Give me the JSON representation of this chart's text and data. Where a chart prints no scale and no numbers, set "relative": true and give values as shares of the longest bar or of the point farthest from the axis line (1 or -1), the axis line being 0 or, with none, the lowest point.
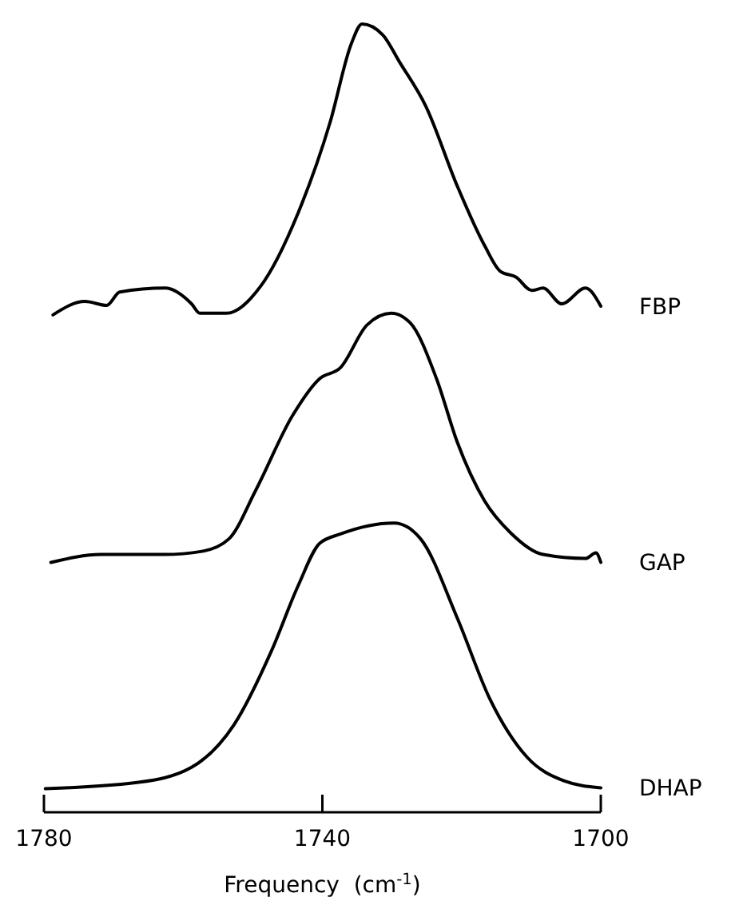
{
  "chart_data": {
    "type": "line",
    "relative": true,
    "xlabel": "Frequency  (cm$^{-1}$)",
    "xlim": [
      1780,
      1700
    ],
    "xticks": [
      1780,
      1740,
      1700
    ],
    "grid": false,
    "marker": "none",
    "line_style": "solid",
    "series": [
      {
        "name": "FBP",
        "color": "#000000",
        "x": [
          1778.7,
          1774.1,
          1771.0,
          1769.1,
          1762.6,
          1758.8,
          1757.6,
          1753.8,
          1748.9,
          1743.5,
          1738.9,
          1735.8,
          1734.3,
          1731.3,
          1729.0,
          1725.1,
          1720.6,
          1716.7,
          1714.4,
          1712.2,
          1709.9,
          1708.3,
          1705.6,
          1702.2,
          1700
        ],
        "values": [
          0.631,
          0.648,
          0.643,
          0.66,
          0.665,
          0.645,
          0.633,
          0.633,
          0.667,
          0.76,
          0.875,
          0.976,
          1.0,
          0.986,
          0.953,
          0.895,
          0.794,
          0.719,
          0.686,
          0.679,
          0.662,
          0.665,
          0.645,
          0.665,
          0.642
        ]
      },
      {
        "name": "GAP",
        "color": "#000000",
        "x": [
          1779.0,
          1771.8,
          1762.7,
          1757.3,
          1753.4,
          1749.6,
          1744.3,
          1740.4,
          1737.4,
          1733.6,
          1730.1,
          1727.4,
          1723.6,
          1720.6,
          1716.7,
          1712.9,
          1708.3,
          1702.2,
          1700.7,
          1700
        ],
        "values": [
          0.317,
          0.327,
          0.327,
          0.331,
          0.347,
          0.408,
          0.503,
          0.55,
          0.564,
          0.618,
          0.633,
          0.621,
          0.55,
          0.469,
          0.395,
          0.354,
          0.327,
          0.322,
          0.329,
          0.317
        ]
      },
      {
        "name": "DHAP",
        "color": "#000000",
        "x": [
          1779.8,
          1766.4,
          1758.8,
          1752.7,
          1747.3,
          1743.5,
          1740.4,
          1737.4,
          1729.7,
          1725.9,
          1720.6,
          1716.0,
          1710.6,
          1705.3,
          1700
        ],
        "values": [
          0.03,
          0.038,
          0.057,
          0.111,
          0.205,
          0.287,
          0.341,
          0.353,
          0.367,
          0.347,
          0.246,
          0.145,
          0.07,
          0.04,
          0.031
        ]
      }
    ]
  }
}
